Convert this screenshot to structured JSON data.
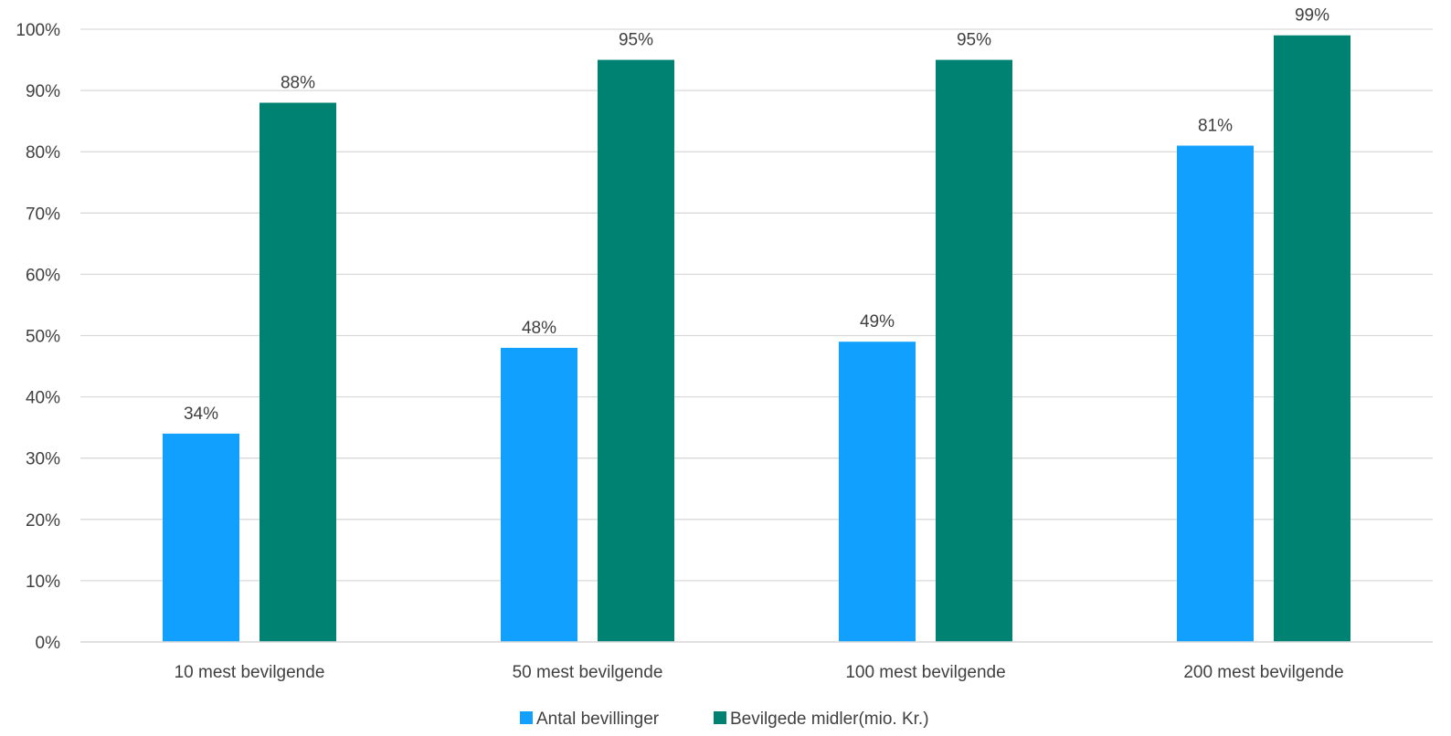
{
  "chart_data": {
    "type": "bar",
    "categories": [
      "10 mest bevilgende",
      "50 mest bevilgende",
      "100 mest bevilgende",
      "200 mest bevilgende"
    ],
    "series": [
      {
        "name": "Antal bevillinger",
        "values": [
          34,
          48,
          49,
          81
        ],
        "labels": [
          "34%",
          "48%",
          "49%",
          "81%"
        ],
        "color": "#12A0FF"
      },
      {
        "name": "Bevilgede midler(mio. Kr.)",
        "values": [
          88,
          95,
          95,
          99
        ],
        "labels": [
          "88%",
          "95%",
          "95%",
          "99%"
        ],
        "color": "#008272"
      }
    ],
    "y_ticks": [
      "0%",
      "10%",
      "20%",
      "30%",
      "40%",
      "50%",
      "60%",
      "70%",
      "80%",
      "90%",
      "100%"
    ],
    "ylim": [
      0,
      100
    ],
    "grid": true,
    "gridline_color": "#D9D9D9",
    "legend_position": "bottom"
  }
}
